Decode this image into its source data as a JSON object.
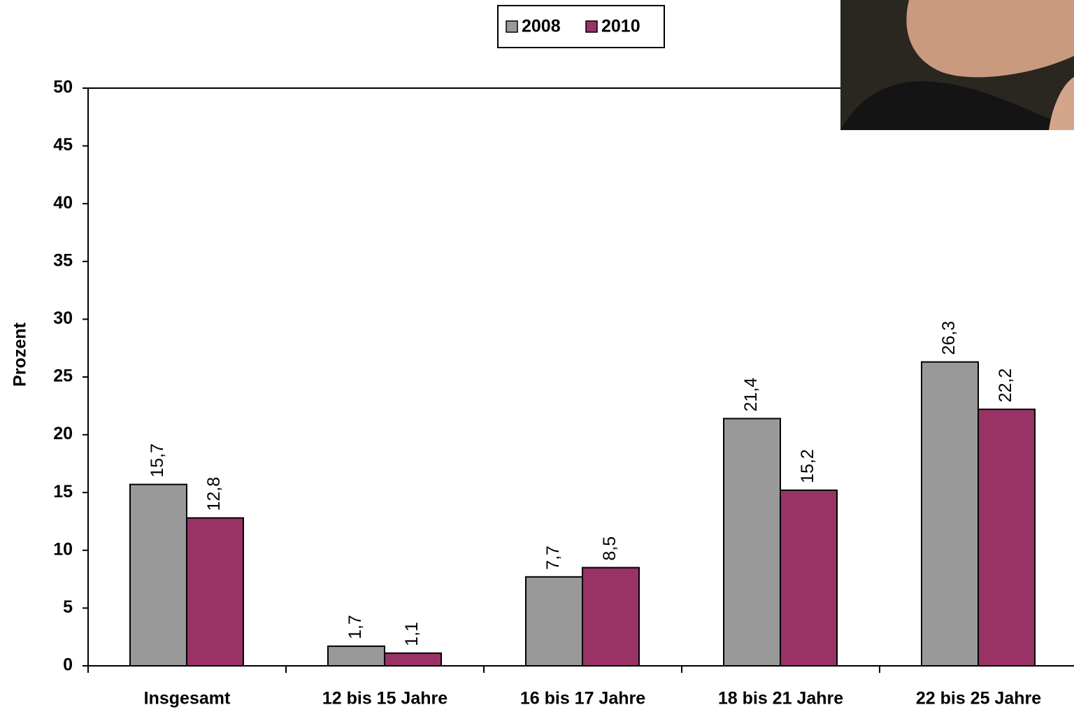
{
  "chart_data": {
    "type": "bar",
    "y_label": "Prozent",
    "categories": [
      "Insgesamt",
      "12 bis 15 Jahre",
      "16 bis 17 Jahre",
      "18 bis 21 Jahre",
      "22 bis 25 Jahre"
    ],
    "series": [
      {
        "name": "2008",
        "color": "#999999",
        "values": [
          15.7,
          1.7,
          7.7,
          21.4,
          26.3
        ],
        "value_labels": [
          "15,7",
          "1,7",
          "7,7",
          "21,4",
          "26,3"
        ]
      },
      {
        "name": "2010",
        "color": "#993366",
        "values": [
          12.8,
          1.1,
          8.5,
          15.2,
          22.2
        ],
        "value_labels": [
          "12,8",
          "1,1",
          "8,5",
          "15,2",
          "22,2"
        ]
      }
    ],
    "ylim": [
      0,
      50
    ],
    "yticks": [
      0,
      5,
      10,
      15,
      20,
      25,
      30,
      35,
      40,
      45,
      50
    ],
    "legend": "top"
  }
}
